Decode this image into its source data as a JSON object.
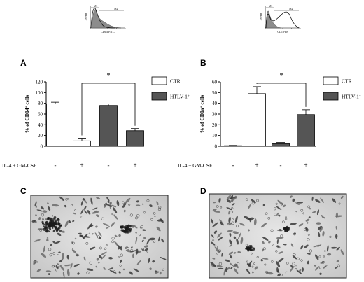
{
  "panels": {
    "A": "A",
    "B": "B",
    "C": "C",
    "D": "D"
  },
  "flow_histograms": [
    {
      "gate_neg": "M1",
      "gate_pos": "M2",
      "ylabel": "Events",
      "xlabel": "CD14-FITC"
    },
    {
      "gate_neg": "M1",
      "gate_pos": "M2",
      "ylabel": "Events",
      "xlabel": "CD1a-PE"
    }
  ],
  "colors": {
    "ctr_fill": "#ffffff",
    "htlv_fill": "#555555",
    "axis": "#000000",
    "flow_fill": "#8c8c8c"
  },
  "chart_data": [
    {
      "type": "bar",
      "panel": "A",
      "ylabel": "% of CD14+ cells",
      "ylabel_main": "% of CD14",
      "ylabel_sup": "+",
      "ylabel_tail": " cells",
      "ylim": [
        0,
        120
      ],
      "yticks": [
        0,
        20,
        40,
        60,
        80,
        100,
        120
      ],
      "treatment_label": "IL-4 + GM-CSF",
      "categories": [
        "-",
        "+",
        "-",
        "+"
      ],
      "values": [
        79,
        10,
        76,
        29
      ],
      "errors": [
        3,
        5,
        3,
        4
      ],
      "groups": [
        "CTR",
        "CTR",
        "HTLV-1+",
        "HTLV-1+"
      ],
      "significance": {
        "from": 1,
        "to": 3,
        "label": "*"
      },
      "legend": [
        {
          "name": "CTR",
          "main": "CTR",
          "sup": "",
          "fill": "#ffffff"
        },
        {
          "name": "HTLV-1+",
          "main": "HTLV-1",
          "sup": "+",
          "fill": "#555555"
        }
      ],
      "legend_position": "top-right"
    },
    {
      "type": "bar",
      "panel": "B",
      "ylabel": "% of CD1a+ cells",
      "ylabel_main": "% of CD1a",
      "ylabel_sup": "+",
      "ylabel_tail": " cells",
      "ylim": [
        0,
        60
      ],
      "yticks": [
        0,
        10,
        20,
        30,
        40,
        50,
        60
      ],
      "treatment_label": "IL-4 + GM-CSF",
      "categories": [
        "-",
        "+",
        "-",
        "+"
      ],
      "values": [
        0.5,
        49,
        2.5,
        29.5
      ],
      "errors": [
        0.3,
        6.5,
        1,
        4.5
      ],
      "groups": [
        "CTR",
        "CTR",
        "HTLV-1+",
        "HTLV-1+"
      ],
      "significance": {
        "from": 1,
        "to": 3,
        "label": "*"
      },
      "legend": [
        {
          "name": "CTR",
          "main": "CTR",
          "sup": "",
          "fill": "#ffffff"
        },
        {
          "name": "HTLV-1+",
          "main": "HTLV-1",
          "sup": "+",
          "fill": "#555555"
        }
      ],
      "legend_position": "top-right"
    }
  ]
}
